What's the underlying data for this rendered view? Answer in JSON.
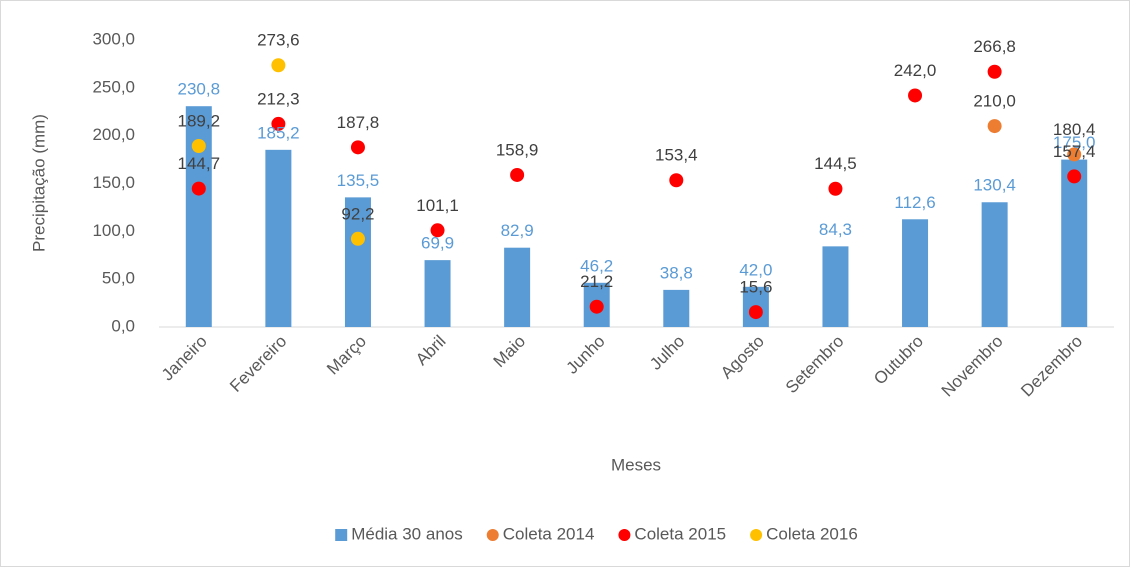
{
  "chart_data": {
    "type": "bar",
    "x_label": "Meses",
    "y_label": "Precipitação (mm)",
    "categories": [
      "Janeiro",
      "Fevereiro",
      "Março",
      "Abril",
      "Maio",
      "Junho",
      "Julho",
      "Agosto",
      "Setembro",
      "Outubro",
      "Novembro",
      "Dezembro"
    ],
    "ylim": [
      0,
      300
    ],
    "yticks": [
      {
        "value": 0,
        "label": "0,0"
      },
      {
        "value": 50,
        "label": "50,0"
      },
      {
        "value": 100,
        "label": "100,0"
      },
      {
        "value": 150,
        "label": "150,0"
      },
      {
        "value": 200,
        "label": "200,0"
      },
      {
        "value": 250,
        "label": "250,0"
      },
      {
        "value": 300,
        "label": "300,0"
      }
    ],
    "legend": "bottom",
    "series": [
      {
        "name": "Média 30 anos",
        "type": "bar",
        "color": "#5b9bd5",
        "values": [
          230.8,
          185.2,
          135.5,
          69.9,
          82.9,
          46.2,
          38.8,
          42.0,
          84.3,
          112.6,
          130.4,
          175.0
        ],
        "value_labels": [
          "230,8",
          "185,2",
          "135,5",
          "69,9",
          "82,9",
          "46,2",
          "38,8",
          "42,0",
          "84,3",
          "112,6",
          "130,4",
          "175,0"
        ]
      },
      {
        "name": "Coleta 2014",
        "type": "scatter",
        "color": "#ed7d31",
        "values": [
          null,
          null,
          null,
          null,
          null,
          null,
          null,
          null,
          null,
          null,
          210.0,
          180.4
        ],
        "value_labels": [
          null,
          null,
          null,
          null,
          null,
          null,
          null,
          null,
          null,
          null,
          "210,0",
          "180,4"
        ]
      },
      {
        "name": "Coleta 2015",
        "type": "scatter",
        "color": "#ff0000",
        "values": [
          144.7,
          212.3,
          187.8,
          101.1,
          158.9,
          21.2,
          153.4,
          15.6,
          144.5,
          242.0,
          266.8,
          157.4
        ],
        "value_labels": [
          "144,7",
          "212,3",
          "187,8",
          "101,1",
          "158,9",
          "21,2",
          "153,4",
          "15,6",
          "144,5",
          "242,0",
          "266,8",
          "157,4"
        ]
      },
      {
        "name": "Coleta 2016",
        "type": "scatter",
        "color": "#ffc000",
        "values": [
          189.2,
          273.6,
          92.2,
          null,
          null,
          null,
          null,
          null,
          null,
          null,
          null,
          null
        ],
        "value_labels": [
          "189,2",
          "273,6",
          "92,2",
          null,
          null,
          null,
          null,
          null,
          null,
          null,
          null,
          null
        ]
      }
    ]
  }
}
